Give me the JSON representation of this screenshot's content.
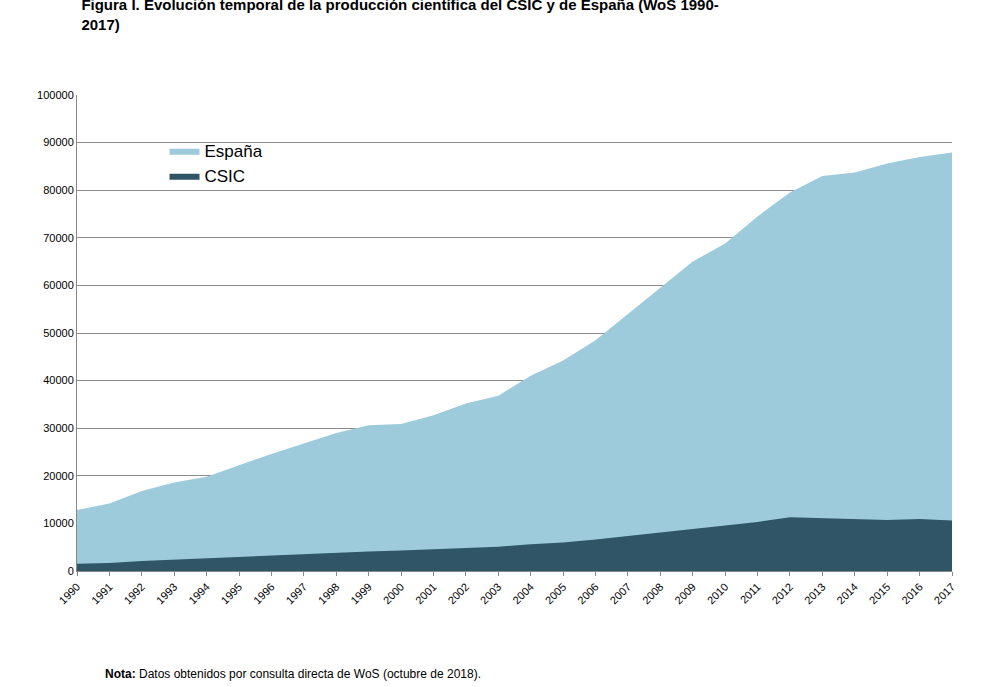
{
  "chart_data": {
    "type": "area",
    "title": "Figura I. Evolución temporal de la producción científica del CSIC y de España (WoS 1990-2017)",
    "note": "Nota: Datos obtenidos por consulta directa de WoS (octubre de 2018).",
    "x": [
      1990,
      1991,
      1992,
      1993,
      1994,
      1995,
      1996,
      1997,
      1998,
      1999,
      2000,
      2001,
      2002,
      2003,
      2004,
      2005,
      2006,
      2007,
      2008,
      2009,
      2010,
      2011,
      2012,
      2013,
      2014,
      2015,
      2016,
      2017
    ],
    "series": [
      {
        "name": "España",
        "color": "#9dcbdb",
        "values": [
          12800,
          14200,
          16800,
          18600,
          19800,
          22200,
          24600,
          26800,
          29000,
          30600,
          30900,
          32700,
          35200,
          36800,
          41000,
          44200,
          48500,
          54000,
          59500,
          65000,
          68800,
          74500,
          79500,
          83000,
          83700,
          85600,
          87000,
          87900
        ]
      },
      {
        "name": "CSIC",
        "color": "#2f5566",
        "values": [
          1500,
          1700,
          2100,
          2400,
          2700,
          2900,
          3300,
          3600,
          3900,
          4100,
          4300,
          4600,
          4900,
          5100,
          5600,
          6000,
          6600,
          7400,
          8100,
          8800,
          9500,
          10300,
          11300,
          11100,
          11000,
          10700,
          10900,
          10600
        ]
      }
    ],
    "xlim": [
      1990,
      2017
    ],
    "xticks": [
      1990,
      1991,
      1992,
      1993,
      1994,
      1995,
      1996,
      1997,
      1998,
      1999,
      2000,
      2001,
      2002,
      2003,
      2004,
      2005,
      2006,
      2007,
      2008,
      2009,
      2010,
      2011,
      2012,
      2013,
      2014,
      2015,
      2016,
      2017
    ],
    "ylim": [
      0,
      100000
    ],
    "yticks": [
      0,
      10000,
      20000,
      30000,
      40000,
      50000,
      60000,
      70000,
      80000,
      90000,
      100000
    ],
    "grid": true,
    "stacked": false,
    "legend": "upper left"
  }
}
